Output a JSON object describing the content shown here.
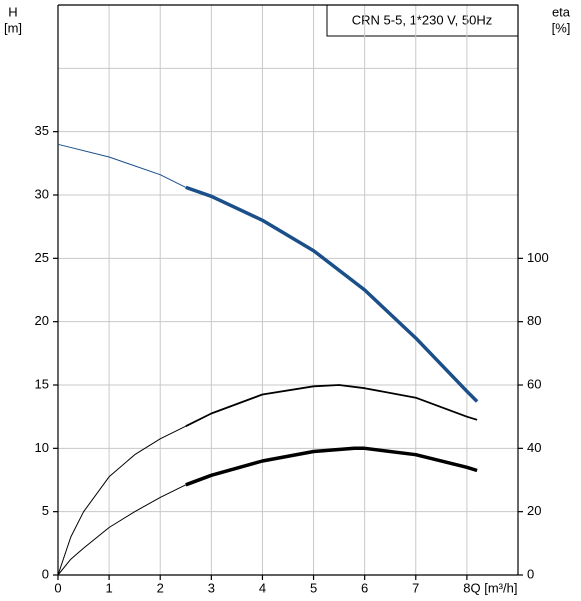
{
  "chart_data": {
    "type": "line",
    "title": "CRN 5-5, 1*230 V, 50Hz",
    "y_label": "H",
    "y_unit": "[m]",
    "y2_label": "eta",
    "y2_unit": "[%]",
    "x_label": "Q [m³/h]",
    "xlim": [
      0,
      9
    ],
    "xticks": [
      0,
      1,
      2,
      3,
      4,
      5,
      6,
      7,
      8
    ],
    "ylim": [
      0,
      45
    ],
    "yticks": [
      0,
      5,
      10,
      15,
      20,
      25,
      30,
      35
    ],
    "grid_y": [
      5,
      10,
      15,
      20,
      25,
      30,
      35,
      40
    ],
    "y2lim": [
      0,
      180
    ],
    "y2ticks": [
      0,
      20,
      40,
      60,
      80,
      100
    ],
    "grid": true,
    "series": [
      {
        "axis": "y",
        "color": "#1b4f8a",
        "width": 1,
        "x": [
          0,
          1,
          2,
          2.5
        ],
        "values": [
          34,
          33,
          31.6,
          30.6
        ]
      },
      {
        "axis": "y",
        "color": "#1b4f8a",
        "width": 3.5,
        "x": [
          2.5,
          3,
          4,
          5,
          6,
          7,
          8,
          8.2
        ],
        "values": [
          30.6,
          29.9,
          28,
          25.6,
          22.5,
          18.7,
          14.5,
          13.7
        ]
      },
      {
        "axis": "y2",
        "color": "#000000",
        "width": 1,
        "x": [
          0,
          0.25,
          0.5,
          1,
          1.5,
          2,
          2.5
        ],
        "values": [
          0,
          12,
          20,
          31,
          38,
          43,
          47
        ]
      },
      {
        "axis": "y2",
        "color": "#000000",
        "width": 1.8,
        "x": [
          2.5,
          3,
          4,
          5,
          5.5,
          6,
          7,
          8,
          8.2
        ],
        "values": [
          47,
          51,
          57,
          59.6,
          60,
          59,
          56,
          50,
          49
        ]
      },
      {
        "axis": "y2",
        "color": "#000000",
        "width": 1,
        "x": [
          0,
          0.25,
          0.5,
          1,
          1.5,
          2,
          2.5
        ],
        "values": [
          0,
          5,
          8.5,
          15,
          20,
          24.5,
          28.5
        ]
      },
      {
        "axis": "y2",
        "color": "#000000",
        "width": 3.5,
        "x": [
          2.5,
          3,
          4,
          5,
          5.8,
          6,
          7,
          8,
          8.2
        ],
        "values": [
          28.5,
          31.5,
          36,
          39,
          40,
          40,
          38,
          34,
          33
        ]
      }
    ]
  }
}
